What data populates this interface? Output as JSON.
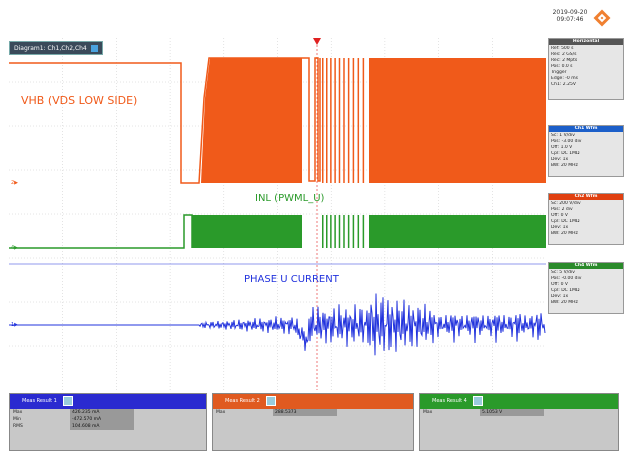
{
  "header": {
    "date": "2019-09-20",
    "time": "09:07:46",
    "diagram_tab": "Diagram1: Ch1,Ch2,Ch4"
  },
  "traces": [
    {
      "name": "VHB (VDS LOW SIDE)",
      "color": "#f05a1a"
    },
    {
      "name": "INL (PWML_U)",
      "color": "#2a9a2a"
    },
    {
      "name": "PHASE U CURRENT",
      "color": "#2233dd"
    }
  ],
  "right_panels": {
    "horizontal": {
      "title": "Horizontal",
      "lines": [
        "Ref: 500 s",
        "Res: 2 GS/s",
        "Rec: 2 Mpts",
        "Pos: 0.0 s",
        "Trigger",
        "Edge: -0 ms",
        "Ch1: 2.25V"
      ]
    },
    "ch1": {
      "title": "Ch1 Wfm",
      "lines": [
        "Sc: 1 V/div",
        "Pos: -3.00 div",
        "Off: 1.0 V",
        "Cpl: DC 1MΩ",
        "Dev: 1x",
        "BW: 20 MHz"
      ],
      "color": "#1c5fc9"
    },
    "ch2": {
      "title": "Ch2 Wfm",
      "lines": [
        "Sc: 200 V/div",
        "Pos: 2 div",
        "Off: 0 V",
        "Cpl: DC 1MΩ",
        "Dev: 1x",
        "BW: 20 MHz"
      ],
      "color": "#e04010"
    },
    "ch4": {
      "title": "Ch4 Wfm",
      "lines": [
        "Sc: 5 V/div",
        "Pos: -0.00 div",
        "Off: 0 V",
        "Cpl: DC 1MΩ",
        "Dev: 1x",
        "BW: 20 MHz"
      ],
      "color": "#2a8a2a"
    }
  },
  "measurements": [
    {
      "title": "Meas Result 1",
      "color": "#2a2ad0",
      "rows": [
        {
          "label": "Max",
          "value": "426.235 mA"
        },
        {
          "label": "Min",
          "value": "-472.570 mA"
        },
        {
          "label": "RMS",
          "value": "104.608 mA"
        }
      ]
    },
    {
      "title": "Meas Result 2",
      "color": "#e05a20",
      "rows": [
        {
          "label": "Max",
          "value": "288.5373"
        }
      ]
    },
    {
      "title": "Meas Result 4",
      "color": "#2a9a2a",
      "rows": [
        {
          "label": "Max",
          "value": "5.1053 V"
        }
      ]
    }
  ],
  "colors": {
    "grid": "#c8c8c8",
    "plot_bg": "#ffffff"
  },
  "icons": [
    "rohde-schwarz-logo",
    "tab-icon",
    "trigger-marker-icon"
  ]
}
